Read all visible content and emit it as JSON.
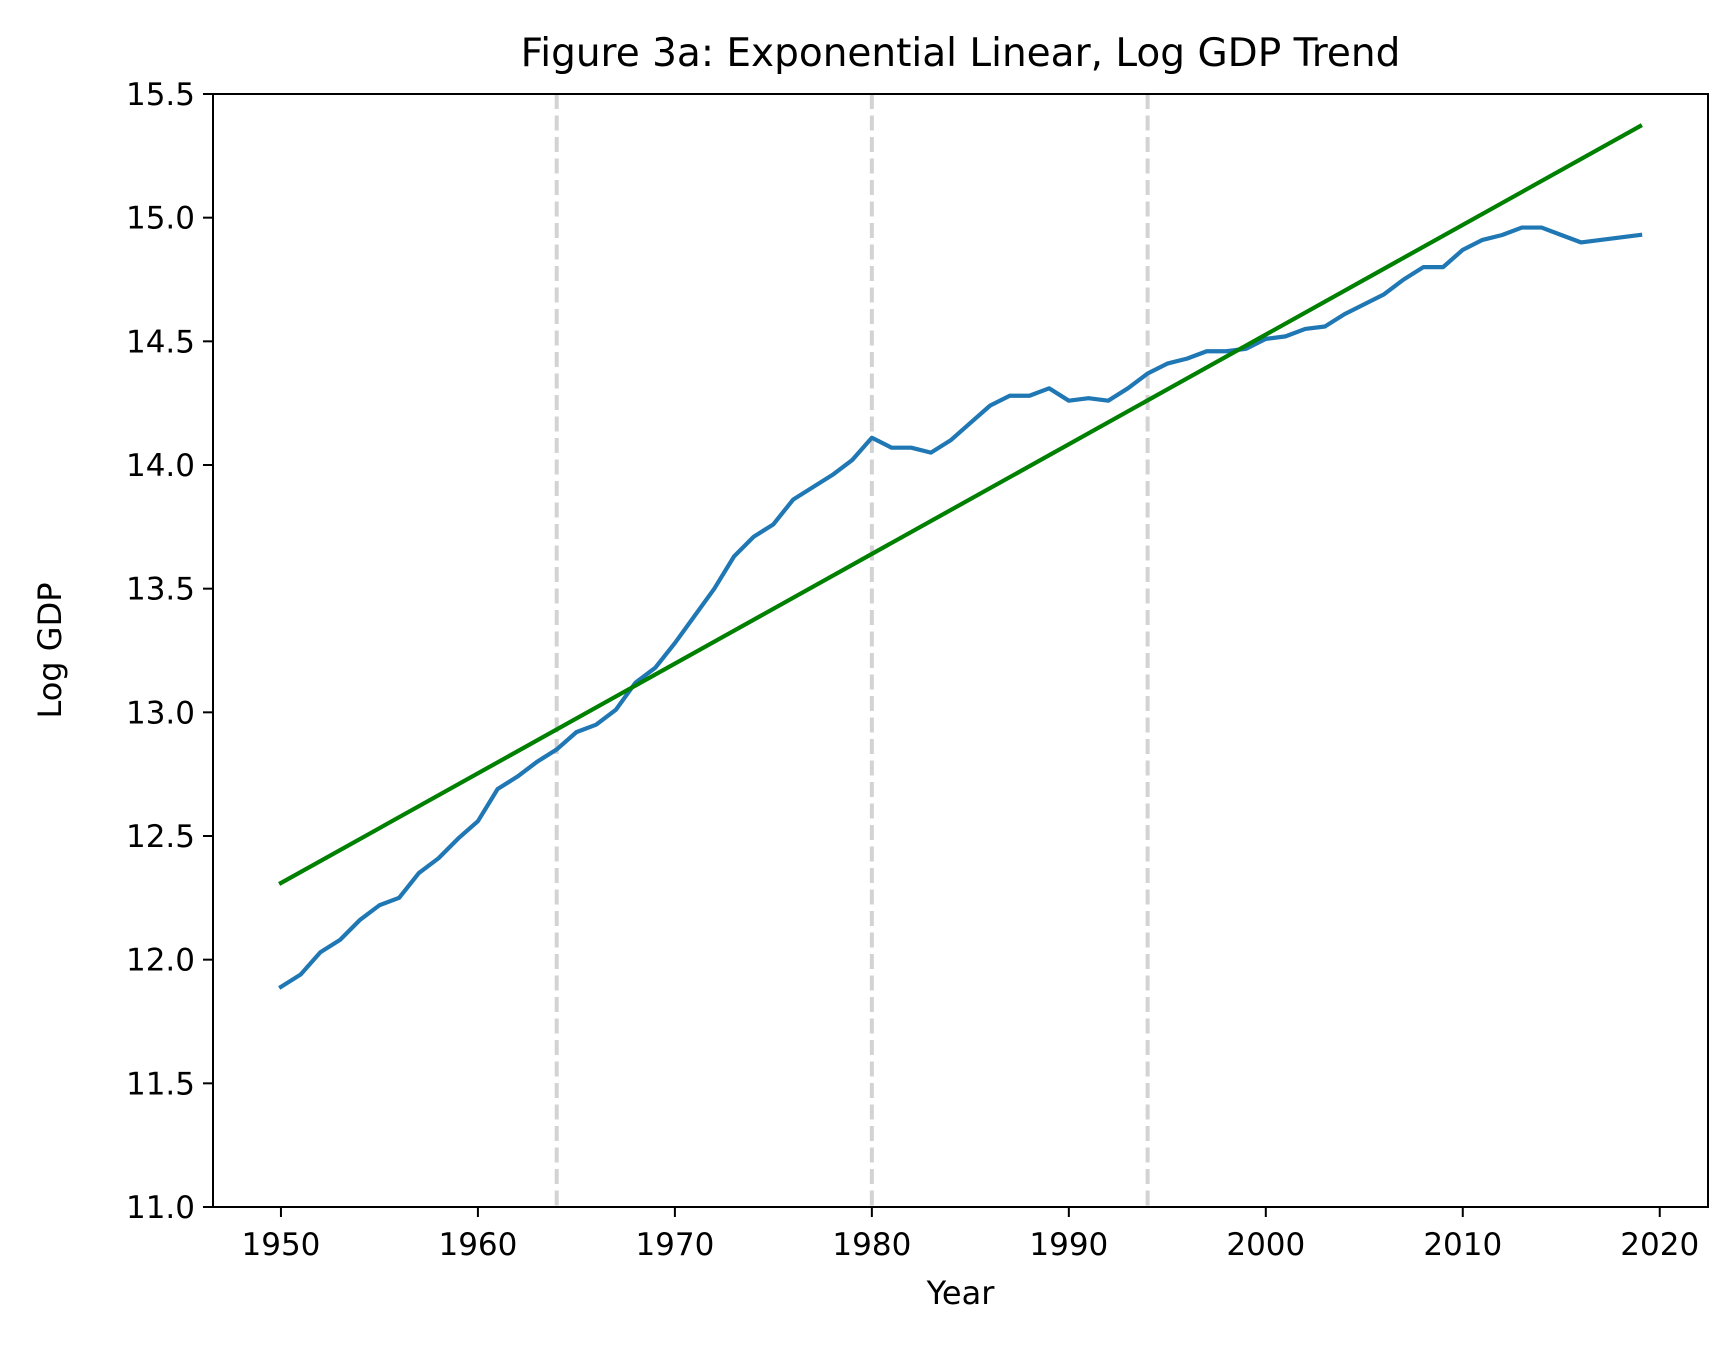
{
  "chart_data": {
    "type": "line",
    "title": "Figure 3a: Exponential Linear, Log GDP Trend",
    "xlabel": "Year",
    "ylabel": "Log GDP",
    "xlim": [
      1946.55,
      2022.45
    ],
    "ylim": [
      11.0,
      15.5
    ],
    "xticks": [
      1950,
      1960,
      1970,
      1980,
      1990,
      2000,
      2010,
      2020
    ],
    "yticks": [
      11.0,
      11.5,
      12.0,
      12.5,
      13.0,
      13.5,
      14.0,
      14.5,
      15.0,
      15.5
    ],
    "ytick_labels": [
      "11.0",
      "11.5",
      "12.0",
      "12.5",
      "13.0",
      "13.5",
      "14.0",
      "14.5",
      "15.0",
      "15.5"
    ],
    "grid": false,
    "vertical_lines": [
      1964,
      1980,
      1994
    ],
    "vertical_line_color": "#d3d3d3",
    "series": [
      {
        "color": "#1f77b4",
        "x": [
          1950,
          1951,
          1952,
          1953,
          1954,
          1955,
          1956,
          1957,
          1958,
          1959,
          1960,
          1961,
          1962,
          1963,
          1964,
          1965,
          1966,
          1967,
          1968,
          1969,
          1970,
          1971,
          1972,
          1973,
          1974,
          1975,
          1976,
          1977,
          1978,
          1979,
          1980,
          1981,
          1982,
          1983,
          1984,
          1985,
          1986,
          1987,
          1988,
          1989,
          1990,
          1991,
          1992,
          1993,
          1994,
          1995,
          1996,
          1997,
          1998,
          1999,
          2000,
          2001,
          2002,
          2003,
          2004,
          2005,
          2006,
          2007,
          2008,
          2009,
          2010,
          2011,
          2012,
          2013,
          2014,
          2015,
          2016,
          2017,
          2018,
          2019
        ],
        "values": [
          11.89,
          11.94,
          12.03,
          12.08,
          12.16,
          12.22,
          12.25,
          12.35,
          12.41,
          12.49,
          12.56,
          12.69,
          12.74,
          12.8,
          12.85,
          12.92,
          12.95,
          13.01,
          13.12,
          13.18,
          13.28,
          13.39,
          13.5,
          13.63,
          13.71,
          13.76,
          13.86,
          13.91,
          13.96,
          14.02,
          14.11,
          14.07,
          14.07,
          14.05,
          14.1,
          14.17,
          14.24,
          14.28,
          14.28,
          14.31,
          14.26,
          14.27,
          14.26,
          14.31,
          14.37,
          14.41,
          14.43,
          14.46,
          14.46,
          14.47,
          14.51,
          14.52,
          14.55,
          14.56,
          14.61,
          14.65,
          14.69,
          14.75,
          14.8,
          14.8,
          14.87,
          14.91,
          14.93,
          14.96,
          14.96,
          14.93,
          14.9,
          14.91,
          14.92,
          14.93
        ]
      },
      {
        "color": "#008000",
        "x": [
          1950,
          2019
        ],
        "values": [
          12.31,
          15.37
        ]
      }
    ]
  }
}
